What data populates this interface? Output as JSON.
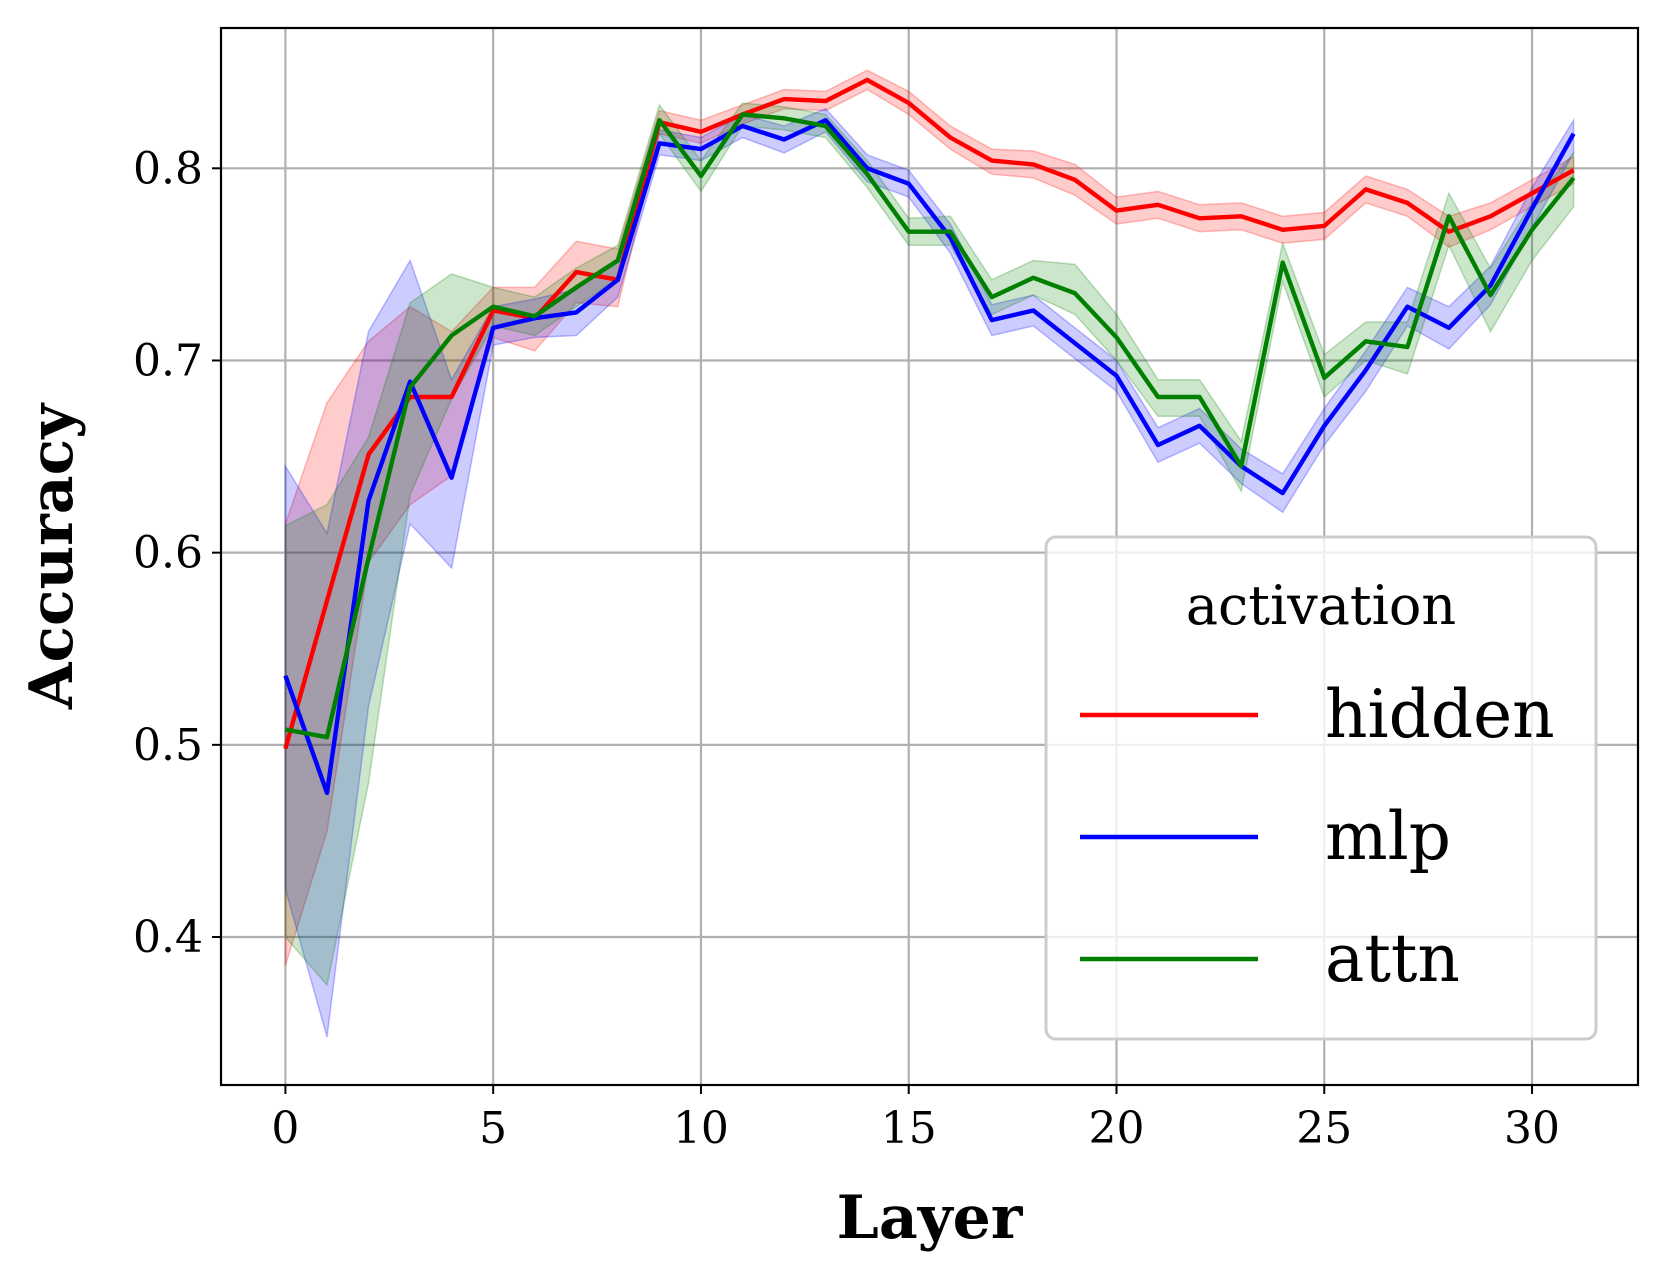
{
  "chart_data": {
    "type": "line",
    "title": "",
    "xlabel": "Layer",
    "ylabel": "Accuracy",
    "xlim": [
      -1.55,
      32.55
    ],
    "ylim": [
      0.323,
      0.873
    ],
    "xticks": [
      0,
      5,
      10,
      15,
      20,
      25,
      30
    ],
    "xtick_labels": [
      "0",
      "5",
      "10",
      "15",
      "20",
      "25",
      "30"
    ],
    "yticks": [
      0.4,
      0.5,
      0.6,
      0.7,
      0.8
    ],
    "ytick_labels": [
      "0.4",
      "0.5",
      "0.6",
      "0.7",
      "0.8"
    ],
    "grid": true,
    "legend": {
      "title": "activation",
      "position": "lower-right"
    },
    "x": [
      0,
      1,
      2,
      3,
      4,
      5,
      6,
      7,
      8,
      9,
      10,
      11,
      12,
      13,
      14,
      15,
      16,
      17,
      18,
      19,
      20,
      21,
      22,
      23,
      24,
      25,
      26,
      27,
      28,
      29,
      30,
      31
    ],
    "series": [
      {
        "name": "hidden",
        "color": "#ff0000",
        "values": [
          0.498,
          0.575,
          0.651,
          0.681,
          0.681,
          0.726,
          0.722,
          0.746,
          0.742,
          0.824,
          0.819,
          0.828,
          0.836,
          0.835,
          0.846,
          0.834,
          0.816,
          0.804,
          0.802,
          0.794,
          0.778,
          0.781,
          0.774,
          0.775,
          0.768,
          0.77,
          0.789,
          0.782,
          0.767,
          0.775,
          0.787,
          0.799
        ],
        "lower": [
          0.385,
          0.455,
          0.595,
          0.625,
          0.64,
          0.712,
          0.705,
          0.73,
          0.728,
          0.818,
          0.813,
          0.823,
          0.831,
          0.83,
          0.841,
          0.828,
          0.81,
          0.797,
          0.795,
          0.786,
          0.771,
          0.774,
          0.767,
          0.768,
          0.761,
          0.763,
          0.782,
          0.775,
          0.759,
          0.768,
          0.78,
          0.792
        ],
        "upper": [
          0.615,
          0.678,
          0.71,
          0.728,
          0.715,
          0.738,
          0.738,
          0.762,
          0.758,
          0.83,
          0.825,
          0.833,
          0.841,
          0.84,
          0.851,
          0.84,
          0.822,
          0.81,
          0.809,
          0.802,
          0.785,
          0.788,
          0.781,
          0.782,
          0.775,
          0.777,
          0.796,
          0.789,
          0.775,
          0.782,
          0.794,
          0.806
        ]
      },
      {
        "name": "mlp",
        "color": "#0000ff",
        "values": [
          0.536,
          0.475,
          0.627,
          0.689,
          0.639,
          0.717,
          0.722,
          0.725,
          0.742,
          0.813,
          0.81,
          0.822,
          0.815,
          0.825,
          0.8,
          0.792,
          0.764,
          0.721,
          0.726,
          0.709,
          0.692,
          0.656,
          0.666,
          0.645,
          0.631,
          0.666,
          0.695,
          0.728,
          0.717,
          0.739,
          0.779,
          0.818
        ],
        "lower": [
          0.425,
          0.348,
          0.52,
          0.615,
          0.592,
          0.708,
          0.712,
          0.713,
          0.733,
          0.807,
          0.804,
          0.816,
          0.808,
          0.819,
          0.793,
          0.785,
          0.756,
          0.713,
          0.718,
          0.701,
          0.684,
          0.647,
          0.657,
          0.636,
          0.621,
          0.656,
          0.684,
          0.718,
          0.706,
          0.729,
          0.769,
          0.808
        ],
        "upper": [
          0.645,
          0.61,
          0.715,
          0.752,
          0.69,
          0.728,
          0.732,
          0.737,
          0.752,
          0.82,
          0.816,
          0.828,
          0.822,
          0.831,
          0.807,
          0.799,
          0.771,
          0.729,
          0.734,
          0.717,
          0.7,
          0.665,
          0.675,
          0.654,
          0.641,
          0.675,
          0.705,
          0.738,
          0.728,
          0.749,
          0.79,
          0.825
        ]
      },
      {
        "name": "attn",
        "color": "#008000",
        "values": [
          0.508,
          0.504,
          0.597,
          0.686,
          0.713,
          0.728,
          0.723,
          0.738,
          0.752,
          0.825,
          0.796,
          0.828,
          0.826,
          0.822,
          0.797,
          0.767,
          0.767,
          0.733,
          0.743,
          0.735,
          0.712,
          0.681,
          0.681,
          0.645,
          0.751,
          0.691,
          0.71,
          0.707,
          0.775,
          0.734,
          0.768,
          0.795
        ],
        "lower": [
          0.4,
          0.375,
          0.48,
          0.63,
          0.68,
          0.718,
          0.713,
          0.728,
          0.743,
          0.818,
          0.788,
          0.822,
          0.82,
          0.816,
          0.79,
          0.76,
          0.76,
          0.724,
          0.734,
          0.724,
          0.7,
          0.671,
          0.671,
          0.632,
          0.741,
          0.681,
          0.7,
          0.693,
          0.76,
          0.715,
          0.752,
          0.78
        ],
        "upper": [
          0.614,
          0.625,
          0.66,
          0.73,
          0.745,
          0.738,
          0.733,
          0.748,
          0.76,
          0.833,
          0.804,
          0.834,
          0.832,
          0.828,
          0.804,
          0.774,
          0.775,
          0.742,
          0.752,
          0.75,
          0.724,
          0.69,
          0.69,
          0.658,
          0.761,
          0.703,
          0.72,
          0.72,
          0.787,
          0.748,
          0.782,
          0.808
        ]
      }
    ]
  }
}
